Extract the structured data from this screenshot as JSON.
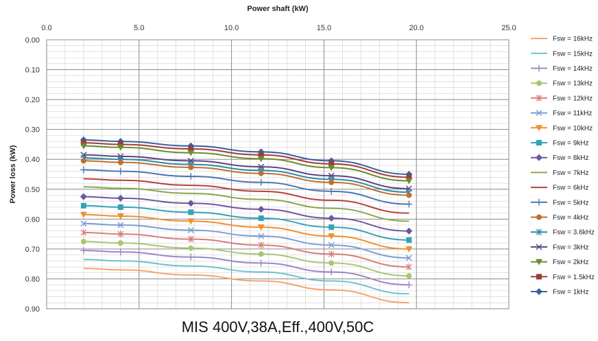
{
  "chart_data": {
    "type": "line",
    "title": "MIS 400V,38A,Eff.,400V,50C",
    "xlabel": "Power shaft (kW)",
    "ylabel": "Power loss (kW)",
    "xlim": [
      0,
      25
    ],
    "ylim": [
      0,
      0.9
    ],
    "x_ticks": [
      "0.0",
      "5.0",
      "10.0",
      "15.0",
      "20.0",
      "25.0"
    ],
    "y_ticks": [
      "0.00",
      "0.10",
      "0.20",
      "0.30",
      "0.40",
      "0.50",
      "0.60",
      "0.70",
      "0.80",
      "0.90"
    ],
    "grid": true,
    "legend_position": "right",
    "x": [
      2.0,
      4.0,
      7.8,
      11.6,
      15.4,
      19.6
    ],
    "series": [
      {
        "name": "Fsw = 1kHz",
        "color": "#3a5f9e",
        "marker": "diamond",
        "values": [
          0.335,
          0.34,
          0.355,
          0.375,
          0.405,
          0.45
        ]
      },
      {
        "name": "Fsw = 1.5kHz",
        "color": "#a13a36",
        "marker": "square",
        "values": [
          0.345,
          0.35,
          0.365,
          0.385,
          0.415,
          0.46
        ]
      },
      {
        "name": "Fsw = 2kHz",
        "color": "#6d8b2d",
        "marker": "triangle",
        "values": [
          0.355,
          0.36,
          0.378,
          0.398,
          0.428,
          0.472
        ]
      },
      {
        "name": "Fsw = 3kHz",
        "color": "#5c4483",
        "marker": "x",
        "values": [
          0.385,
          0.39,
          0.405,
          0.425,
          0.455,
          0.498
        ]
      },
      {
        "name": "Fsw = 3.6kHz",
        "color": "#2d8aa4",
        "marker": "star",
        "values": [
          0.395,
          0.4,
          0.417,
          0.437,
          0.467,
          0.51
        ]
      },
      {
        "name": "Fsw = 4kHz",
        "color": "#c0702e",
        "marker": "circle",
        "values": [
          0.405,
          0.41,
          0.427,
          0.447,
          0.477,
          0.52
        ]
      },
      {
        "name": "Fsw = 5kHz",
        "color": "#4a75b4",
        "marker": "plus",
        "values": [
          0.435,
          0.44,
          0.457,
          0.477,
          0.507,
          0.55
        ]
      },
      {
        "name": "Fsw = 6kHz",
        "color": "#b8403c",
        "marker": "none",
        "values": [
          0.465,
          0.47,
          0.487,
          0.507,
          0.537,
          0.58
        ]
      },
      {
        "name": "Fsw = 7kHz",
        "color": "#8aa64a",
        "marker": "none",
        "values": [
          0.492,
          0.497,
          0.514,
          0.534,
          0.564,
          0.607
        ]
      },
      {
        "name": "Fsw = 8kHz",
        "color": "#6f56a0",
        "marker": "diamond",
        "values": [
          0.525,
          0.53,
          0.547,
          0.567,
          0.597,
          0.64
        ]
      },
      {
        "name": "Fsw = 9kHz",
        "color": "#33a3b8",
        "marker": "square",
        "values": [
          0.555,
          0.56,
          0.577,
          0.597,
          0.627,
          0.67
        ]
      },
      {
        "name": "Fsw = 10kHz",
        "color": "#f0902c",
        "marker": "triangle",
        "values": [
          0.585,
          0.59,
          0.607,
          0.627,
          0.657,
          0.7
        ]
      },
      {
        "name": "Fsw = 11kHz",
        "color": "#7d9cd4",
        "marker": "x",
        "values": [
          0.615,
          0.62,
          0.637,
          0.657,
          0.687,
          0.73
        ]
      },
      {
        "name": "Fsw = 12kHz",
        "color": "#d77d7a",
        "marker": "star",
        "values": [
          0.645,
          0.65,
          0.667,
          0.687,
          0.717,
          0.76
        ]
      },
      {
        "name": "Fsw = 13kHz",
        "color": "#a8c672",
        "marker": "circle",
        "values": [
          0.675,
          0.68,
          0.697,
          0.717,
          0.747,
          0.79
        ]
      },
      {
        "name": "Fsw = 14kHz",
        "color": "#9b86c6",
        "marker": "plus",
        "values": [
          0.705,
          0.71,
          0.727,
          0.747,
          0.777,
          0.82
        ]
      },
      {
        "name": "Fsw = 15kHz",
        "color": "#6fc0d0",
        "marker": "none",
        "values": [
          0.735,
          0.74,
          0.757,
          0.777,
          0.807,
          0.85
        ]
      },
      {
        "name": "Fsw = 16kHz",
        "color": "#f6a36b",
        "marker": "none",
        "values": [
          0.765,
          0.77,
          0.787,
          0.807,
          0.837,
          0.88
        ]
      }
    ]
  }
}
